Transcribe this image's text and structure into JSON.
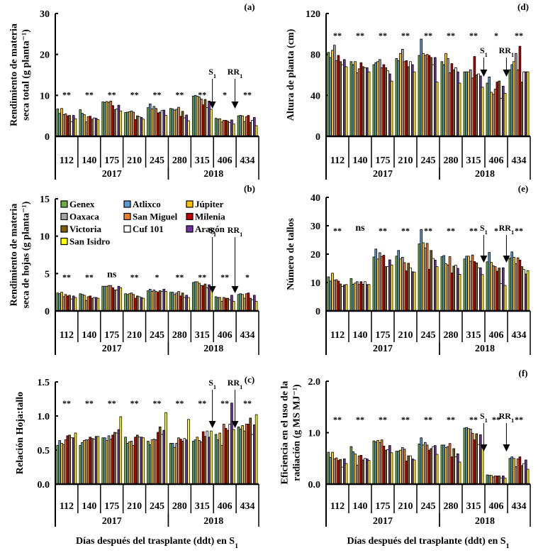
{
  "cultivars": [
    {
      "name": "Genex",
      "color": "#70ad47"
    },
    {
      "name": "Atlixco",
      "color": "#5b9bd5"
    },
    {
      "name": "Júpiter",
      "color": "#ffc000"
    },
    {
      "name": "Oaxaca",
      "color": "#a5a5a5"
    },
    {
      "name": "San Miguel",
      "color": "#ed7d31"
    },
    {
      "name": "Milenia",
      "color": "#c00000"
    },
    {
      "name": "Victoria",
      "color": "#7f6000"
    },
    {
      "name": "Cuf 101",
      "color": "#ffffff"
    },
    {
      "name": "Aragón",
      "color": "#7030a0"
    },
    {
      "name": "San Isidro",
      "color": "#ffff00"
    }
  ],
  "groups": [
    "112",
    "140",
    "175",
    "210",
    "245",
    "280",
    "315",
    "406",
    "434"
  ],
  "years": [
    {
      "label": "2017",
      "span": 5
    },
    {
      "label": "2018",
      "span": 4
    }
  ],
  "xlabel": "Días después del trasplante (ddt) en S",
  "xlabel_sub": "1",
  "arrow_labels": {
    "s1": "S",
    "s1_sub": "1",
    "rr1": "RR",
    "rr1_sub": "1"
  },
  "chart_data": [
    {
      "id": "a",
      "panel_label": "(a)",
      "type": "bar",
      "ylabel_lines": [
        "Rendimiento de materia",
        "seca total (g planta⁻¹)"
      ],
      "ylim": [
        0,
        30
      ],
      "yticks": [
        "0",
        "10",
        "20",
        "30"
      ],
      "ytick_values": [
        0,
        10,
        20,
        30
      ],
      "significance": [
        "**",
        "**",
        "**",
        "**",
        "**",
        "**",
        "**",
        "*",
        "**"
      ],
      "series_by_group": [
        [
          6.7,
          5.6,
          6.8,
          5.3,
          5.5,
          5.0,
          5.1,
          3.6,
          5.1,
          4.3
        ],
        [
          6.5,
          5.6,
          5.3,
          3.5,
          4.8,
          4.9,
          4.2,
          4.5,
          4.4,
          4.1
        ],
        [
          8.4,
          8.3,
          8.5,
          8.3,
          8.6,
          7.5,
          6.5,
          6.7,
          7.6,
          6.2
        ],
        [
          5.8,
          5.9,
          6.0,
          6.2,
          5.9,
          4.1,
          5.0,
          4.8,
          4.6,
          4.2
        ],
        [
          7.0,
          7.9,
          6.7,
          7.3,
          6.8,
          5.7,
          5.9,
          6.3,
          6.4,
          5.1
        ],
        [
          6.8,
          6.7,
          6.4,
          6.6,
          7.1,
          4.9,
          6.1,
          4.5,
          5.2,
          3.8
        ],
        [
          9.8,
          10.0,
          9.8,
          9.6,
          9.1,
          7.7,
          9.0,
          7.0,
          8.6,
          6.6
        ],
        [
          4.4,
          4.2,
          4.3,
          3.5,
          3.9,
          3.9,
          3.7,
          3.4,
          4.0,
          3.0
        ],
        [
          5.0,
          5.1,
          5.0,
          3.6,
          4.8,
          5.1,
          3.4,
          3.9,
          4.6,
          2.6
        ]
      ],
      "arrows": {
        "s1_group": 6.95,
        "rr1_group": 7.95
      }
    },
    {
      "id": "b",
      "panel_label": "(b)",
      "type": "bar",
      "ylabel_lines": [
        "Rendimiento de materia",
        "seca de hojas (g planta⁻¹)"
      ],
      "ylim": [
        0,
        15
      ],
      "yticks": [
        "0",
        "5",
        "10",
        "15"
      ],
      "ytick_values": [
        0,
        5,
        10,
        15
      ],
      "significance": [
        "**",
        "**",
        "ns",
        "**",
        "*",
        "**",
        "**",
        "**",
        "*"
      ],
      "series_by_group": [
        [
          2.4,
          2.3,
          2.5,
          1.9,
          2.2,
          2.0,
          2.1,
          1.6,
          2.0,
          1.8
        ],
        [
          2.3,
          2.2,
          2.1,
          1.4,
          1.9,
          2.0,
          1.7,
          1.8,
          1.8,
          1.7
        ],
        [
          3.3,
          3.3,
          3.3,
          3.4,
          3.4,
          3.1,
          2.8,
          2.8,
          3.3,
          3.1
        ],
        [
          2.3,
          2.2,
          2.3,
          2.4,
          2.2,
          1.7,
          2.0,
          1.9,
          1.8,
          1.7
        ],
        [
          2.7,
          2.9,
          2.6,
          2.8,
          2.6,
          2.5,
          2.7,
          2.6,
          2.9,
          2.6
        ],
        [
          2.5,
          2.5,
          2.2,
          2.4,
          2.6,
          2.0,
          2.4,
          1.8,
          2.1,
          1.8
        ],
        [
          3.8,
          3.9,
          3.9,
          3.7,
          3.4,
          3.4,
          3.6,
          3.1,
          3.5,
          3.0
        ],
        [
          1.9,
          1.8,
          1.8,
          1.3,
          1.8,
          1.7,
          1.7,
          1.5,
          2.1,
          1.3
        ],
        [
          2.2,
          2.3,
          2.2,
          1.7,
          2.3,
          2.4,
          1.7,
          1.5,
          2.1,
          1.3
        ]
      ],
      "arrows": {
        "s1_group": 6.95,
        "rr1_group": 7.95
      },
      "legend": true
    },
    {
      "id": "c",
      "panel_label": "(c)",
      "type": "bar",
      "ylabel_lines": [
        "Relación Hoja:tallo"
      ],
      "ylim": [
        0,
        1.5
      ],
      "yticks": [
        "0.0",
        "0.5",
        "1.0",
        "1.5"
      ],
      "ytick_values": [
        0,
        0.5,
        1.0,
        1.5
      ],
      "significance": [
        "**",
        "**",
        "**",
        "**",
        "**",
        "**",
        "**",
        "**",
        "**"
      ],
      "series_by_group": [
        [
          0.57,
          0.64,
          0.6,
          0.58,
          0.65,
          0.71,
          0.72,
          0.68,
          0.68,
          0.75
        ],
        [
          0.57,
          0.61,
          0.64,
          0.65,
          0.65,
          0.69,
          0.67,
          0.66,
          0.7,
          0.7
        ],
        [
          0.68,
          0.68,
          0.64,
          0.71,
          0.66,
          0.72,
          0.76,
          0.75,
          0.8,
          0.99
        ],
        [
          0.69,
          0.6,
          0.62,
          0.63,
          0.57,
          0.69,
          0.72,
          0.69,
          0.69,
          0.68
        ],
        [
          0.63,
          0.58,
          0.65,
          0.66,
          0.65,
          0.76,
          0.84,
          0.73,
          0.79,
          1.05
        ],
        [
          0.6,
          0.6,
          0.54,
          0.6,
          0.68,
          0.66,
          0.63,
          0.67,
          0.65,
          0.95
        ],
        [
          0.63,
          0.65,
          0.69,
          0.64,
          0.62,
          0.77,
          0.7,
          0.78,
          0.69,
          0.78
        ],
        [
          0.73,
          0.65,
          0.75,
          0.57,
          0.88,
          0.82,
          0.79,
          0.88,
          1.19,
          0.8
        ],
        [
          0.84,
          0.81,
          0.86,
          0.78,
          0.88,
          0.88,
          0.97,
          0.73,
          0.87,
          1.02
        ]
      ],
      "arrows": {
        "s1_group": 6.95,
        "rr1_group": 7.95
      }
    },
    {
      "id": "d",
      "panel_label": "(d)",
      "type": "bar",
      "ylabel_lines": [
        "Altura de planta (cm)"
      ],
      "ylim": [
        0,
        120
      ],
      "yticks": [
        "0",
        "40",
        "80",
        "120"
      ],
      "ytick_values": [
        0,
        40,
        80,
        120
      ],
      "significance": [
        "**",
        "**",
        "**",
        "**",
        "**",
        "**",
        "**",
        "*",
        "**"
      ],
      "series_by_group": [
        [
          82,
          77,
          84,
          89,
          74,
          79,
          73,
          70,
          75,
          68
        ],
        [
          73,
          70,
          73,
          62,
          66,
          72,
          68,
          67,
          67,
          63
        ],
        [
          70,
          72,
          73,
          75,
          67,
          70,
          67,
          64,
          61,
          54
        ],
        [
          76,
          74,
          81,
          85,
          73,
          74,
          68,
          73,
          70,
          63
        ],
        [
          79,
          95,
          81,
          79,
          80,
          79,
          77,
          70,
          77,
          53
        ],
        [
          73,
          70,
          81,
          76,
          62,
          71,
          65,
          67,
          63,
          52
        ],
        [
          63,
          63,
          63,
          65,
          57,
          78,
          60,
          61,
          59,
          48
        ],
        [
          52,
          58,
          43,
          41,
          46,
          53,
          54,
          37,
          49,
          42
        ],
        [
          65,
          70,
          73,
          81,
          65,
          88,
          53,
          63,
          63,
          63
        ]
      ],
      "arrows": {
        "s1_group": 6.95,
        "rr1_group": 7.95
      }
    },
    {
      "id": "e",
      "panel_label": "(e)",
      "type": "bar",
      "ylabel_lines": [
        "Número de tallos"
      ],
      "ylim": [
        0,
        40
      ],
      "yticks": [
        "0",
        "10",
        "20",
        "30",
        "40"
      ],
      "ytick_values": [
        0,
        10,
        20,
        30,
        40
      ],
      "significance": [
        "**",
        "ns",
        "**",
        "**",
        "**",
        "**",
        "**",
        "*",
        "**"
      ],
      "series_by_group": [
        [
          12.0,
          10.5,
          13.3,
          10.8,
          11.0,
          10.5,
          9.5,
          8.6,
          9.2,
          9.3
        ],
        [
          11.4,
          9.4,
          9.8,
          10.3,
          9.3,
          10.3,
          9.4,
          10.3,
          9.3,
          9.3
        ],
        [
          19.0,
          21.8,
          18.3,
          20.5,
          19.2,
          19.6,
          15.6,
          15.6,
          18.0,
          16.2
        ],
        [
          19.3,
          21.3,
          18.3,
          18.9,
          17.0,
          14.1,
          16.8,
          15.2,
          13.8,
          13.7
        ],
        [
          23.6,
          28.7,
          24.0,
          22.2,
          23.8,
          14.7,
          21.3,
          18.5,
          17.9,
          15.6
        ],
        [
          19.1,
          19.5,
          16.6,
          16.2,
          19.1,
          13.4,
          15.8,
          16.1,
          15.0,
          12.9
        ],
        [
          18.3,
          19.3,
          19.3,
          17.5,
          19.7,
          17.4,
          16.9,
          15.2,
          15.2,
          12.8
        ],
        [
          17.3,
          20.6,
          17.1,
          15.9,
          15.6,
          14.0,
          15.1,
          9.6,
          15.2,
          9.0
        ],
        [
          18.6,
          20.8,
          18.9,
          16.6,
          18.7,
          17.9,
          15.6,
          14.6,
          13.0,
          14.2
        ]
      ],
      "arrows": {
        "s1_group": 6.95,
        "rr1_group": 7.95
      }
    },
    {
      "id": "f",
      "panel_label": "(f)",
      "type": "bar",
      "ylabel_lines": [
        "Eficiencia en el uso de la",
        "radiación (g MS MJ⁻¹)"
      ],
      "ylim": [
        0,
        2.0
      ],
      "yticks": [
        "0.0",
        "1.0",
        "2.0"
      ],
      "ytick_values": [
        0,
        1.0,
        2.0
      ],
      "significance": [
        "**",
        "**",
        "**",
        "**",
        "**",
        "**",
        "**",
        "**",
        "**"
      ],
      "series_by_group": [
        [
          0.62,
          0.52,
          0.62,
          0.49,
          0.51,
          0.46,
          0.48,
          0.33,
          0.49,
          0.4
        ],
        [
          0.73,
          0.63,
          0.59,
          0.37,
          0.55,
          0.56,
          0.47,
          0.5,
          0.49,
          0.46
        ],
        [
          0.84,
          0.82,
          0.85,
          0.81,
          0.86,
          0.74,
          0.66,
          0.67,
          0.75,
          0.61
        ],
        [
          0.64,
          0.64,
          0.66,
          0.71,
          0.68,
          0.45,
          0.55,
          0.55,
          0.49,
          0.47
        ],
        [
          0.78,
          0.9,
          0.76,
          0.81,
          0.76,
          0.66,
          0.69,
          0.73,
          0.75,
          0.58
        ],
        [
          0.76,
          0.76,
          0.71,
          0.73,
          0.79,
          0.53,
          0.69,
          0.53,
          0.59,
          0.43
        ],
        [
          1.09,
          1.1,
          1.08,
          1.07,
          0.99,
          0.86,
          0.98,
          0.77,
          0.96,
          0.74
        ],
        [
          0.18,
          0.17,
          0.17,
          0.14,
          0.16,
          0.16,
          0.16,
          0.12,
          0.16,
          0.12
        ],
        [
          0.5,
          0.53,
          0.5,
          0.34,
          0.49,
          0.53,
          0.36,
          0.4,
          0.47,
          0.29
        ]
      ],
      "arrows": {
        "s1_group": 6.95,
        "rr1_group": 7.95
      }
    }
  ]
}
